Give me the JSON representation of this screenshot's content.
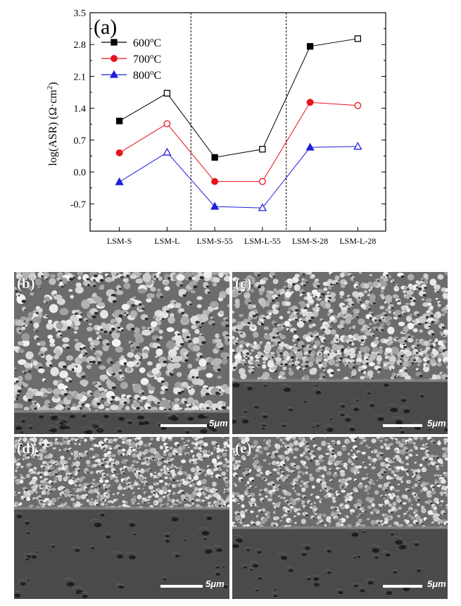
{
  "chart_data": {
    "type": "line",
    "panel_label": "(a)",
    "ylabel": "log(ASR) (Ω·cm",
    "ylabel_sup": "2",
    "ylabel_end": ")",
    "ylim": [
      -1.3,
      3.5
    ],
    "yticks": [
      "3.5",
      "2.8",
      "2.1",
      "1.4",
      "0.7",
      "0.0",
      "-0.7"
    ],
    "ytick_values": [
      3.5,
      2.8,
      2.1,
      1.4,
      0.7,
      0.0,
      -0.7
    ],
    "categories": [
      "LSM-S",
      "LSM-L",
      "LSM-S-55",
      "LSM-L-55",
      "LSM-S-28",
      "LSM-L-28"
    ],
    "filled": [
      true,
      false,
      true,
      false,
      true,
      false
    ],
    "dividers_after": [
      2,
      4
    ],
    "legend_placement": "top-left",
    "grid": false,
    "series": [
      {
        "name": "600",
        "unit": "°C",
        "unit_o": "o",
        "unit_c": "C",
        "color": "#000000",
        "marker": "square",
        "values": [
          1.12,
          1.73,
          0.32,
          0.5,
          2.76,
          2.93
        ]
      },
      {
        "name": "700",
        "unit": "°C",
        "unit_o": "o",
        "unit_c": "C",
        "color": "#e8141c",
        "marker": "circle",
        "values": [
          0.42,
          1.06,
          -0.21,
          -0.21,
          1.53,
          1.46
        ]
      },
      {
        "name": "800",
        "unit": "°C",
        "unit_o": "o",
        "unit_c": "C",
        "color": "#1f1fdc",
        "marker": "triangle",
        "values": [
          -0.22,
          0.43,
          -0.76,
          -0.79,
          0.54,
          0.56
        ]
      }
    ]
  },
  "micrographs": [
    {
      "label": "(b)",
      "scale": "5μm",
      "seed": 11,
      "interface": 0.86,
      "grain": "coarse"
    },
    {
      "label": "(c)",
      "scale": "5μm",
      "seed": 23,
      "interface": 0.67,
      "grain": "mixed"
    },
    {
      "label": "(d)",
      "scale": "5μm",
      "seed": 37,
      "interface": 0.44,
      "grain": "fine"
    },
    {
      "label": "(e)",
      "scale": "5μm",
      "seed": 51,
      "interface": 0.56,
      "grain": "fine"
    }
  ]
}
